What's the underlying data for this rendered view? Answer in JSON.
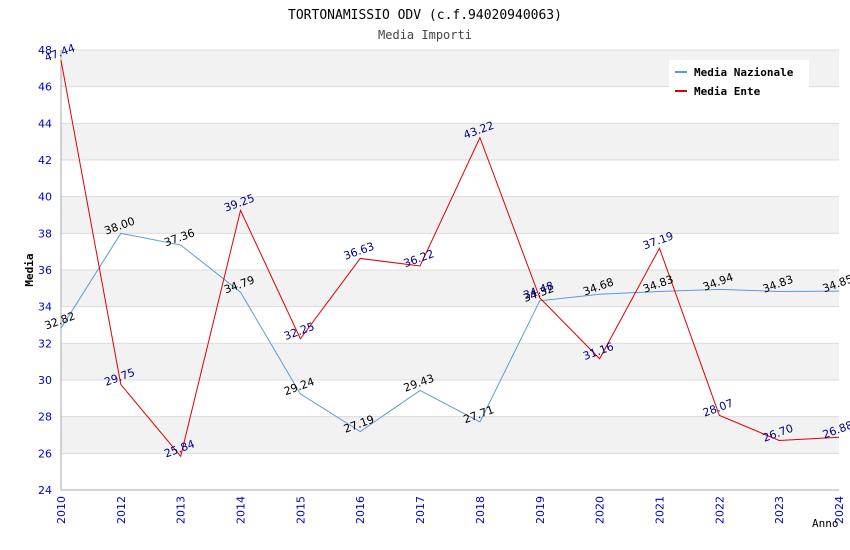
{
  "chart_data": {
    "type": "line",
    "title": "TORTONAMISSIO ODV (c.f.94020940063)",
    "subtitle": "Media Importi",
    "xlabel": "Anno",
    "ylabel": "Media",
    "ylim": [
      24,
      48
    ],
    "yticks": [
      24,
      26,
      28,
      30,
      32,
      34,
      36,
      38,
      40,
      42,
      44,
      46,
      48
    ],
    "grid": true,
    "legend_position": "top-right",
    "categories": [
      "2010",
      "2012",
      "2013",
      "2014",
      "2015",
      "2016",
      "2017",
      "2018",
      "2019",
      "2020",
      "2021",
      "2022",
      "2023",
      "2024"
    ],
    "series": [
      {
        "name": "Media Nazionale",
        "color": "#5b9bd5",
        "label_color": "#000000",
        "values": [
          32.82,
          38.0,
          37.36,
          34.79,
          29.24,
          27.19,
          29.43,
          27.71,
          34.32,
          34.68,
          34.83,
          34.94,
          34.83,
          34.85
        ],
        "labels": [
          "32.82",
          "38.00",
          "37.36",
          "34.79",
          "29.24",
          "27.19",
          "29.43",
          "27.71",
          "34.32",
          "34.68",
          "34.83",
          "34.94",
          "34.83",
          "34.85"
        ]
      },
      {
        "name": "Media Ente",
        "color": "#e00000",
        "label_color": "#00008b",
        "values": [
          47.44,
          29.75,
          25.84,
          39.25,
          32.25,
          36.63,
          36.22,
          43.22,
          34.48,
          31.16,
          37.19,
          28.07,
          26.7,
          26.88
        ],
        "labels": [
          "47.44",
          "29.75",
          "25.84",
          "39.25",
          "32.25",
          "36.63",
          "36.22",
          "43.22",
          "34.48",
          "31.16",
          "37.19",
          "28.07",
          "26.70",
          "26.88"
        ]
      }
    ]
  }
}
